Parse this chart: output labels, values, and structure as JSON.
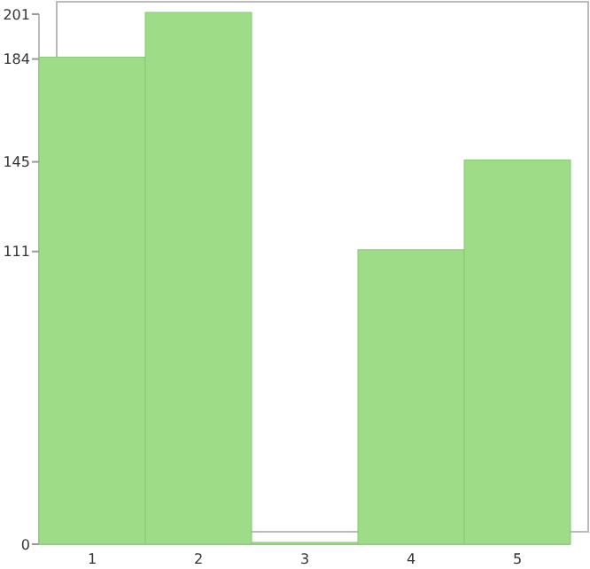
{
  "chart_data": {
    "type": "bar",
    "categories": [
      "1",
      "2",
      "3",
      "4",
      "5"
    ],
    "values": [
      184,
      201,
      0,
      111,
      145
    ],
    "color": "#9edc88",
    "ylim": [
      0,
      201
    ],
    "yticks": [
      0,
      111,
      145,
      184,
      201
    ],
    "grid": false
  }
}
